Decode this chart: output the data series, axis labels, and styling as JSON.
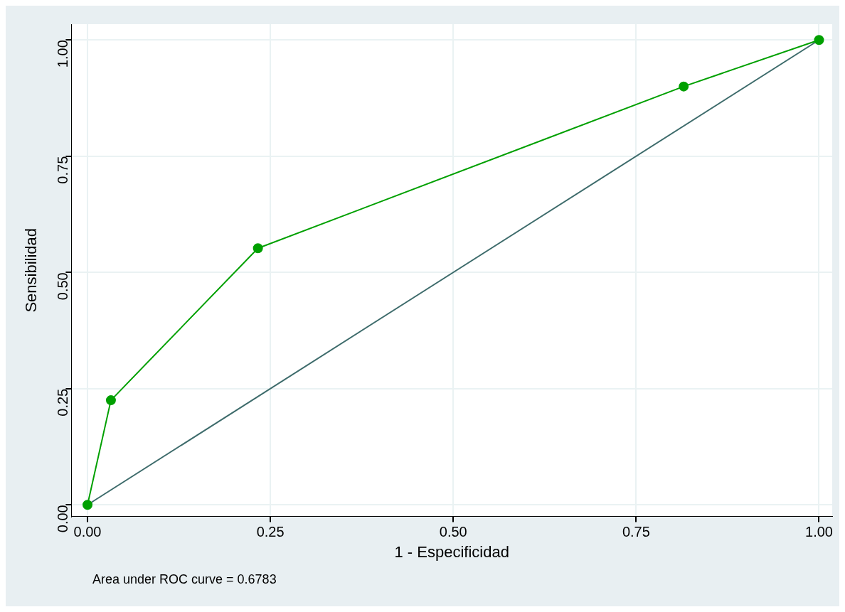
{
  "chart_data": {
    "type": "line",
    "xlabel": "1 - Especificidad",
    "ylabel": "Sensibilidad",
    "series": [
      {
        "color": "#00a000",
        "marker": "circle",
        "x": [
          0,
          0.032,
          0.233,
          0.815,
          1
        ],
        "values": [
          0,
          0.225,
          0.552,
          0.9,
          1
        ]
      },
      {
        "color": "#3d6b6b",
        "marker": "none",
        "x": [
          0,
          1
        ],
        "values": [
          0,
          1
        ]
      }
    ],
    "xlim": [
      -0.022,
      1.018
    ],
    "xticks": [
      {
        "value": 0,
        "label": "0.00"
      },
      {
        "value": 0.25,
        "label": "0.25"
      },
      {
        "value": 0.5,
        "label": "0.50"
      },
      {
        "value": 0.75,
        "label": "0.75"
      },
      {
        "value": 1,
        "label": "1.00"
      }
    ],
    "ylim": [
      -0.025,
      1.034
    ],
    "yticks": [
      {
        "value": 0,
        "label": "0.00"
      },
      {
        "value": 0.25,
        "label": "0.25"
      },
      {
        "value": 0.5,
        "label": "0.50"
      },
      {
        "value": 0.75,
        "label": "0.75"
      },
      {
        "value": 1,
        "label": "1.00"
      }
    ],
    "grid": true,
    "legend": false,
    "annotations": [
      "Area under ROC curve = 0.6783"
    ]
  }
}
